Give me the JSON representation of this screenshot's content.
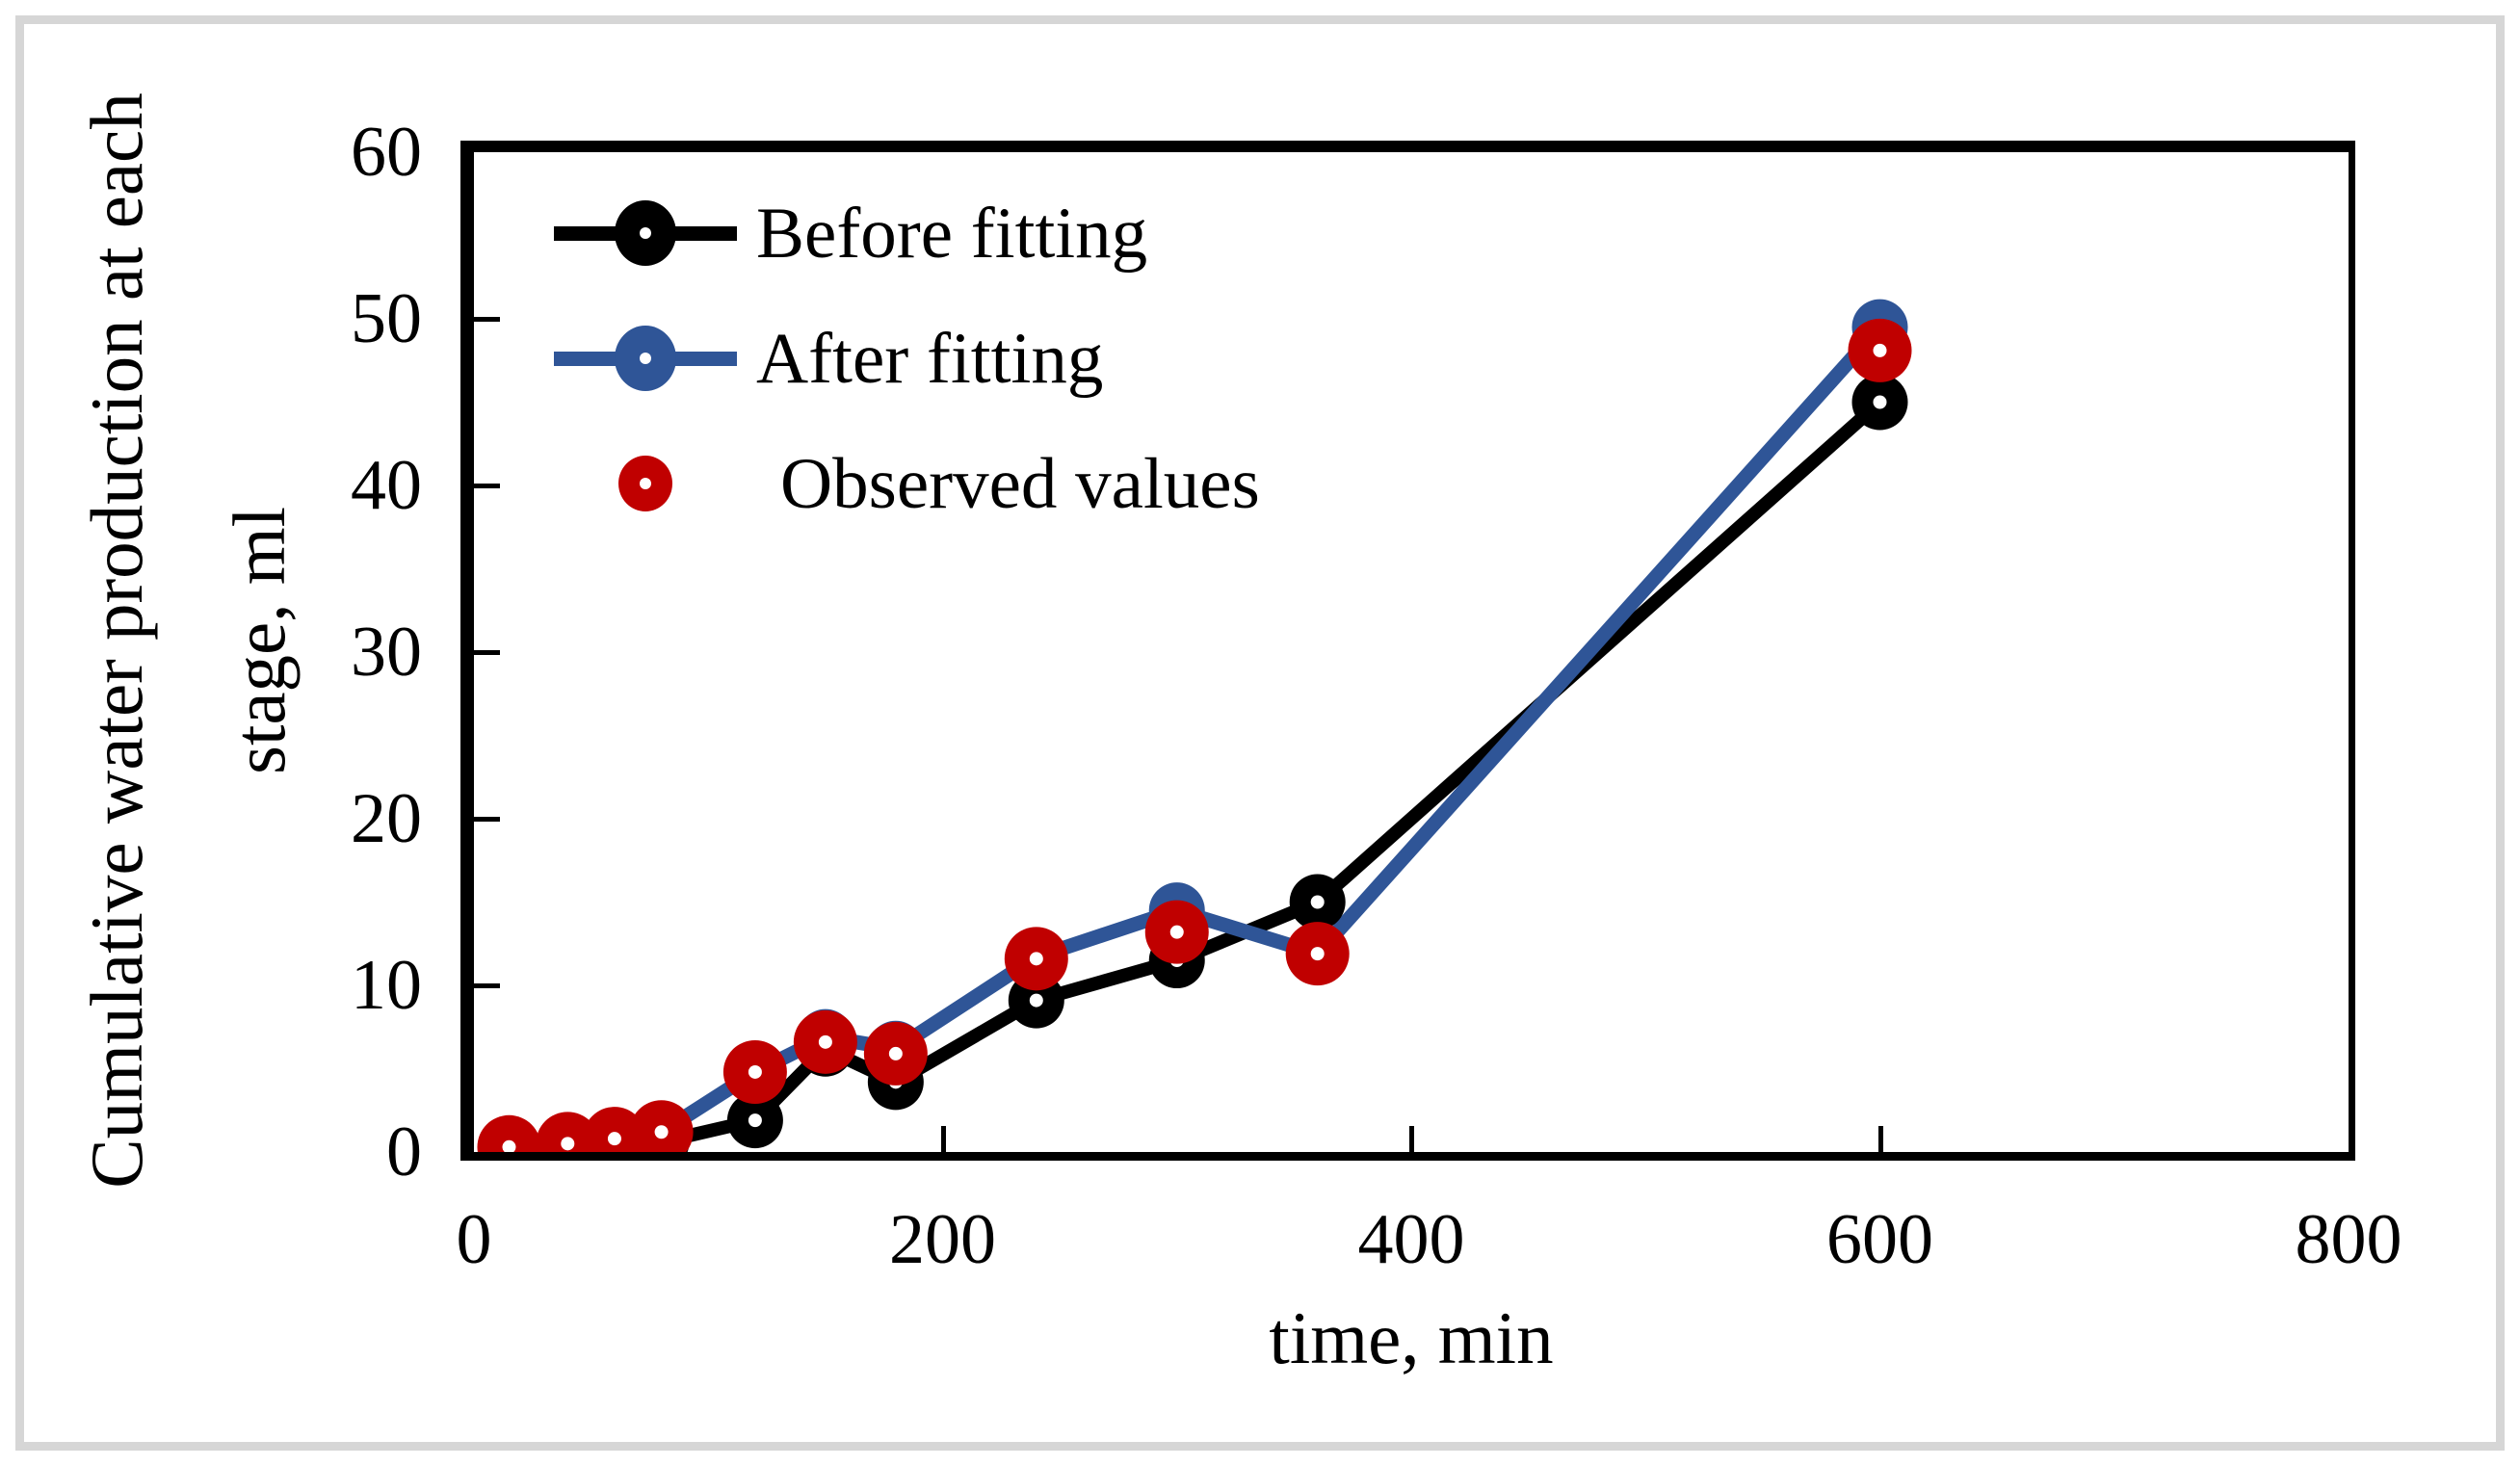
{
  "figure": {
    "background": "#ffffff",
    "frame_color": "#d6d6d6",
    "axis_color": "#000000"
  },
  "y_axis": {
    "title_line1": "Cumulative water production at each",
    "title_line2": "stage,  ml",
    "ticks": [
      0,
      10,
      20,
      30,
      40,
      50,
      60
    ],
    "min": 0,
    "max": 60
  },
  "x_axis": {
    "title": "time,   min",
    "ticks": [
      0,
      200,
      400,
      600,
      800
    ],
    "min": 0,
    "max": 800
  },
  "legend": {
    "items": [
      {
        "label": "Before fitting",
        "color": "#000000",
        "style": "line-marker"
      },
      {
        "label": "After fitting",
        "color": "#2f5597",
        "style": "line-marker"
      },
      {
        "label": "Observed values",
        "color": "#c00000",
        "style": "marker-only"
      }
    ]
  },
  "chart_data": {
    "type": "line",
    "title": "",
    "xlabel": "time,   min",
    "ylabel": "Cumulative water production at each stage,  ml",
    "xlim": [
      0,
      800
    ],
    "ylim": [
      0,
      60
    ],
    "x_ticks": [
      0,
      200,
      400,
      600,
      800
    ],
    "y_ticks": [
      0,
      10,
      20,
      30,
      40,
      50,
      60
    ],
    "grid": false,
    "legend_position": "upper-left-inside",
    "x": [
      15,
      40,
      60,
      80,
      120,
      150,
      180,
      240,
      300,
      360,
      600
    ],
    "series": [
      {
        "name": "Before fitting",
        "color": "#000000",
        "draw_line": true,
        "values": [
          0.2,
          0.3,
          0.4,
          0.6,
          1.9,
          6.2,
          4.2,
          9.1,
          11.5,
          15.0,
          45.0
        ]
      },
      {
        "name": "After fitting",
        "color": "#2f5597",
        "draw_line": true,
        "values": [
          0.3,
          0.5,
          0.8,
          1.2,
          4.8,
          6.9,
          6.2,
          11.7,
          14.5,
          11.9,
          49.5
        ]
      },
      {
        "name": "Observed values",
        "color": "#c00000",
        "draw_line": false,
        "values": [
          0.3,
          0.5,
          0.8,
          1.2,
          4.8,
          6.6,
          5.9,
          11.6,
          13.2,
          11.9,
          48.1
        ]
      }
    ]
  }
}
